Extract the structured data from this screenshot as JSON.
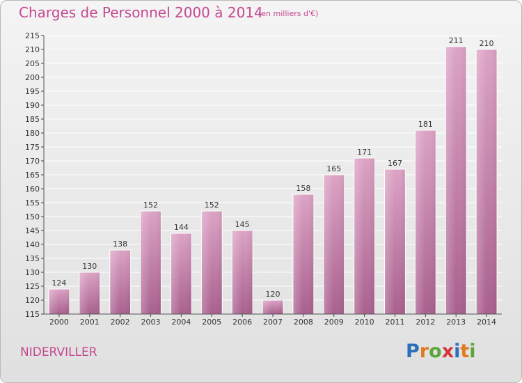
{
  "title": "Charges de Personnel 2000 à 2014",
  "subtitle": "(en milliers d'€)",
  "town": "NIDERVILLER",
  "logo": {
    "letters": [
      "P",
      "r",
      "o",
      "x",
      "i",
      "t",
      "i"
    ],
    "colors": [
      "#2a6fb8",
      "#e27a1f",
      "#5aa63a",
      "#d8353a",
      "#2a6fb8",
      "#e27a1f",
      "#5aa63a"
    ]
  },
  "colors": {
    "bar": "#d48bb5",
    "text": "#c44891"
  },
  "chart_data": {
    "type": "bar",
    "title": "Charges de Personnel 2000 à 2014",
    "subtitle": "(en milliers d'€)",
    "categories": [
      "2000",
      "2001",
      "2002",
      "2003",
      "2004",
      "2005",
      "2006",
      "2007",
      "2008",
      "2009",
      "2010",
      "2011",
      "2012",
      "2013",
      "2014"
    ],
    "values": [
      124,
      130,
      138,
      152,
      144,
      152,
      145,
      120,
      158,
      165,
      171,
      167,
      181,
      211,
      210
    ],
    "ylim": [
      115,
      215
    ],
    "yticks": [
      115,
      120,
      125,
      130,
      135,
      140,
      145,
      150,
      155,
      160,
      165,
      170,
      175,
      180,
      185,
      190,
      195,
      200,
      205,
      210,
      215
    ],
    "grid": true,
    "xlabel": "",
    "ylabel": ""
  }
}
